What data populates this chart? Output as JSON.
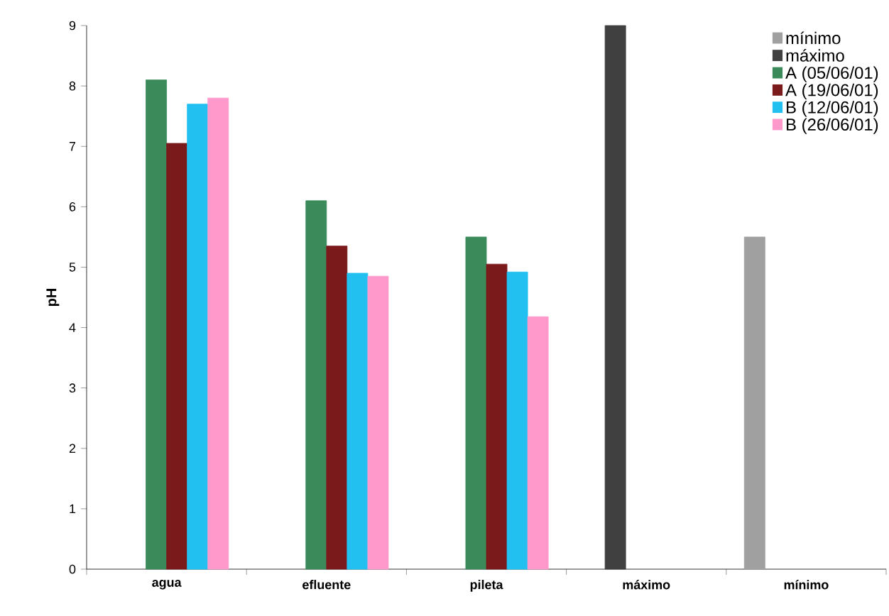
{
  "chart_data": {
    "type": "bar",
    "ylabel": "pH",
    "categories": [
      "agua",
      "efluente",
      "pileta",
      "máximo",
      "mínimo"
    ],
    "series": [
      {
        "name": "mínimo",
        "color": "#a0a0a0",
        "values": [
          null,
          null,
          null,
          null,
          5.5
        ]
      },
      {
        "name": "máximo",
        "color": "#404040",
        "values": [
          null,
          null,
          null,
          9,
          null
        ]
      },
      {
        "name": "A (05/06/01)",
        "color": "#3a8a5a",
        "values": [
          8.1,
          6.1,
          5.5,
          null,
          null
        ]
      },
      {
        "name": "A (19/06/01)",
        "color": "#7a1a1a",
        "values": [
          7.05,
          5.35,
          5.05,
          null,
          null
        ]
      },
      {
        "name": "B (12/06/01)",
        "color": "#22c0f0",
        "values": [
          7.7,
          4.9,
          4.92,
          null,
          null
        ]
      },
      {
        "name": "B (26/06/01)",
        "color": "#ff99cc",
        "values": [
          7.8,
          4.85,
          4.18,
          null,
          null
        ]
      }
    ],
    "ylim": [
      0,
      9
    ],
    "yticks": [
      0,
      1,
      2,
      3,
      4,
      5,
      6,
      7,
      8,
      9
    ],
    "grid": false,
    "legend": "top right"
  }
}
